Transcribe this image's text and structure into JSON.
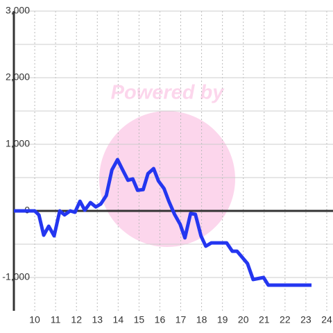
{
  "chart_data": {
    "type": "line",
    "watermark": "Powered by",
    "x": [
      9.0,
      10.0,
      10.2,
      10.43,
      10.67,
      10.93,
      11.2,
      11.43,
      11.7,
      11.93,
      12.17,
      12.4,
      12.67,
      12.93,
      13.17,
      13.43,
      13.7,
      13.97,
      14.2,
      14.47,
      14.7,
      14.93,
      15.2,
      15.43,
      15.7,
      15.93,
      16.2,
      16.43,
      16.7,
      16.97,
      17.2,
      17.47,
      17.7,
      17.97,
      18.2,
      18.47,
      19.2,
      19.47,
      19.7,
      20.2,
      20.47,
      20.97,
      21.2,
      23.27
    ],
    "series": [
      {
        "color": "#2436f0",
        "values": [
          0,
          0,
          -60,
          -365,
          -230,
          -375,
          0,
          -60,
          0,
          -20,
          145,
          10,
          125,
          60,
          105,
          230,
          615,
          770,
          625,
          460,
          480,
          310,
          320,
          560,
          635,
          450,
          335,
          145,
          -50,
          -200,
          -405,
          -40,
          -50,
          -375,
          -530,
          -480,
          -480,
          -605,
          -605,
          -790,
          -1030,
          -1000,
          -1115,
          -1115
        ]
      }
    ],
    "xlim": [
      9,
      24.3
    ],
    "xticks": [
      10,
      11,
      12,
      13,
      14,
      15,
      16,
      17,
      18,
      19,
      20,
      21,
      22,
      23,
      24
    ],
    "ylim": [
      -1500,
      3000
    ],
    "yticks": [
      {
        "value": 3000,
        "label": "3,000"
      },
      {
        "value": 2000,
        "label": "2,000"
      },
      {
        "value": 1000,
        "label": "1,000"
      },
      0,
      {
        "value": -1000,
        "label": "-1,000"
      }
    ],
    "yminor": [
      2500,
      1500,
      500,
      -500
    ],
    "grid": true
  }
}
